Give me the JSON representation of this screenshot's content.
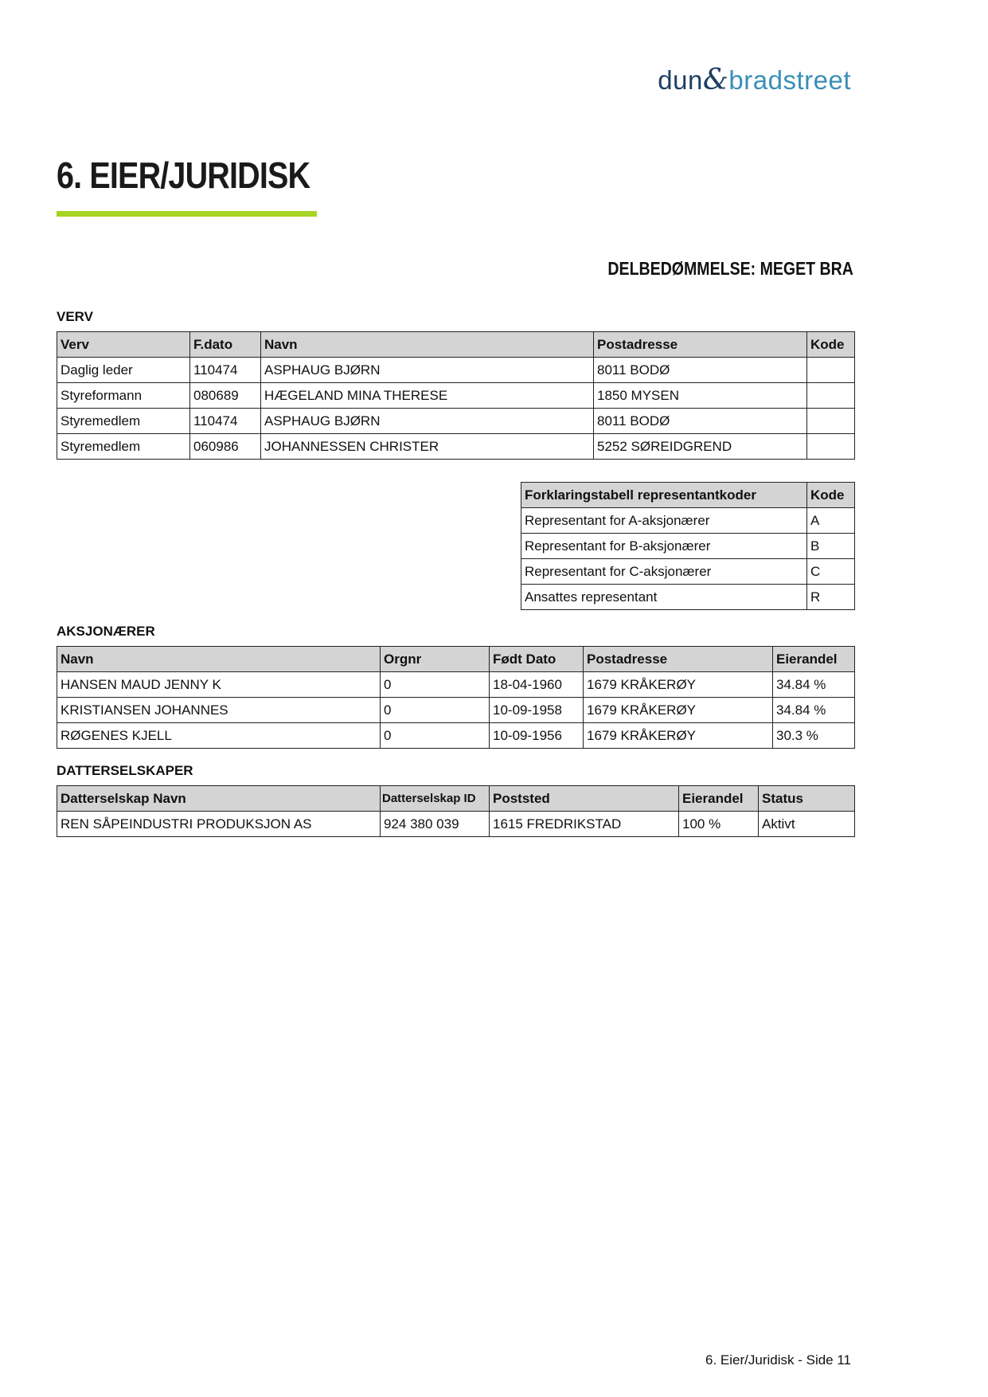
{
  "logo": {
    "part1": "dun",
    "amp": "&",
    "part2": "bradstreet",
    "colors": {
      "dun": "#1d3f63",
      "bradstreet": "#3a8fb7"
    }
  },
  "header": {
    "title": "6. EIER/JURIDISK",
    "accent_color": "#a6d421"
  },
  "rating": "DELBEDØMMELSE: MEGET BRA",
  "verv": {
    "label": "VERV",
    "columns": [
      "Verv",
      "F.dato",
      "Navn",
      "Postadresse",
      "Kode"
    ],
    "rows": [
      [
        "Daglig leder",
        "110474",
        "ASPHAUG BJØRN",
        "8011 BODØ",
        ""
      ],
      [
        "Styreformann",
        "080689",
        "HÆGELAND MINA THERESE",
        "1850 MYSEN",
        ""
      ],
      [
        "Styremedlem",
        "110474",
        "ASPHAUG BJØRN",
        "8011 BODØ",
        ""
      ],
      [
        "Styremedlem",
        "060986",
        "JOHANNESSEN CHRISTER",
        "5252 SØREIDGREND",
        ""
      ]
    ]
  },
  "forklaring": {
    "columns": [
      "Forklaringstabell representantkoder",
      "Kode"
    ],
    "rows": [
      [
        "Representant for A-aksjonærer",
        "A"
      ],
      [
        "Representant for B-aksjonærer",
        "B"
      ],
      [
        "Representant for C-aksjonærer",
        "C"
      ],
      [
        "Ansattes representant",
        "R"
      ]
    ]
  },
  "aksjonaerer": {
    "label": "AKSJONÆRER",
    "columns": [
      "Navn",
      "Orgnr",
      "Født Dato",
      "Postadresse",
      "Eierandel"
    ],
    "rows": [
      [
        "HANSEN MAUD JENNY K",
        "0",
        "18-04-1960",
        "1679 KRÅKERØY",
        "34.84 %"
      ],
      [
        "KRISTIANSEN JOHANNES",
        "0",
        "10-09-1958",
        "1679 KRÅKERØY",
        "34.84 %"
      ],
      [
        "RØGENES KJELL",
        "0",
        "10-09-1956",
        "1679 KRÅKERØY",
        "30.3 %"
      ]
    ]
  },
  "datterselskaper": {
    "label": "DATTERSELSKAPER",
    "columns": [
      "Datterselskap Navn",
      "Datterselskap ID",
      "Poststed",
      "Eierandel",
      "Status"
    ],
    "rows": [
      [
        "REN SÅPEINDUSTRI PRODUKSJON AS",
        "924 380 039",
        "1615 FREDRIKSTAD",
        "100 %",
        "Aktivt"
      ]
    ]
  },
  "footer": "6. Eier/Juridisk - Side 11"
}
